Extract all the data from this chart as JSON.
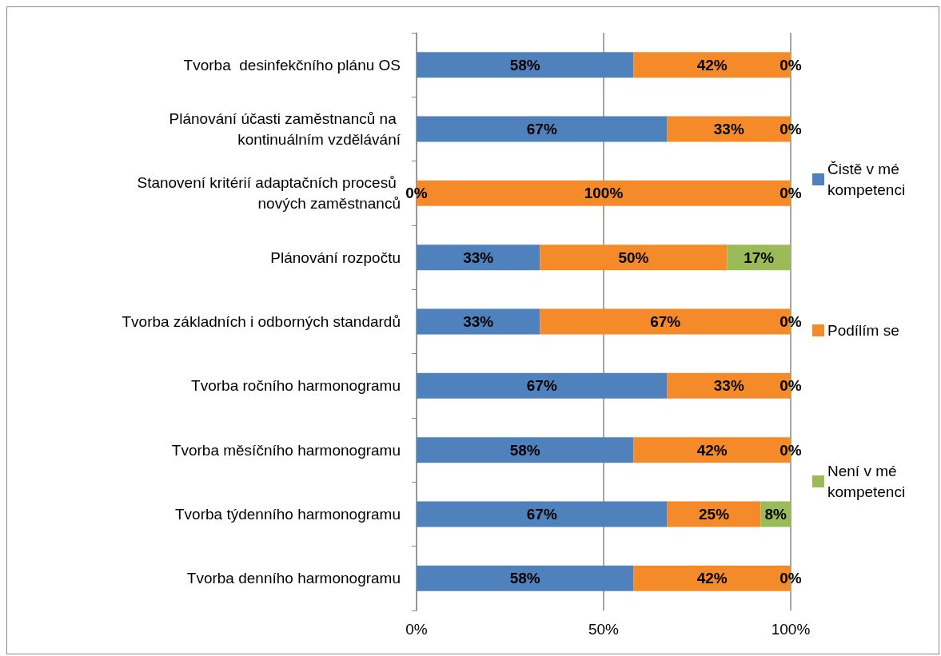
{
  "chart_data": {
    "type": "bar",
    "orientation": "horizontal",
    "stacked": true,
    "categories": [
      "Tvorba  desinfekčního plánu OS",
      "Plánování účasti zaměstnanců na kontinuálním vzdělávání",
      "Stanovení kritérií adaptačních procesů nových zaměstnanců",
      "Plánování rozpočtu",
      "Tvorba základních i odborných standardů",
      "Tvorba ročního harmonogramu",
      "Tvorba měsíčního harmonogramu",
      "Tvorba týdenního harmonogramu",
      "Tvorba denního harmonogramu"
    ],
    "series": [
      {
        "name": "Čistě v mé kompetenci",
        "color": "#4f81bd",
        "values": [
          58,
          67,
          0,
          33,
          33,
          67,
          58,
          67,
          58
        ],
        "value_labels": [
          "58%",
          "67%",
          "0%",
          "33%",
          "33%",
          "67%",
          "58%",
          "67%",
          "58%"
        ]
      },
      {
        "name": "Podílím se",
        "color": "#f58a2a",
        "values": [
          42,
          33,
          100,
          50,
          67,
          33,
          42,
          25,
          42
        ],
        "value_labels": [
          "42%",
          "33%",
          "100%",
          "50%",
          "67%",
          "33%",
          "42%",
          "25%",
          "42%"
        ]
      },
      {
        "name": "Není v mé kompetenci",
        "color": "#9bbb59",
        "values": [
          0,
          0,
          0,
          17,
          0,
          0,
          0,
          8,
          0
        ],
        "value_labels": [
          "0%",
          "0%",
          "0%",
          "17%",
          "0%",
          "0%",
          "0%",
          "8%",
          "0%"
        ]
      }
    ],
    "xlim": [
      0,
      100
    ],
    "xticks": [
      {
        "value": 0,
        "label": "0%"
      },
      {
        "value": 50,
        "label": "50%"
      },
      {
        "value": 100,
        "label": "100%"
      }
    ],
    "grid": "x",
    "legend": "right"
  }
}
